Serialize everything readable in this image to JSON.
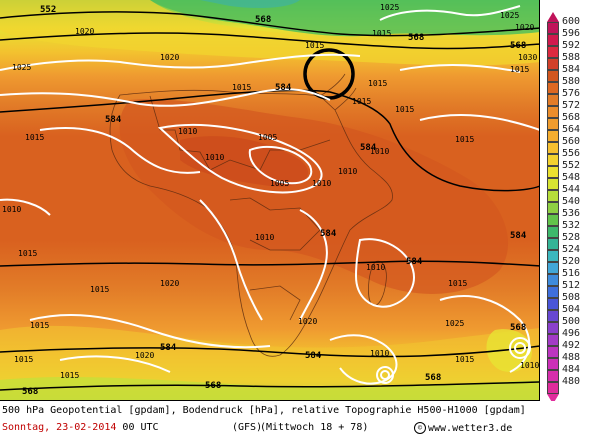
{
  "map": {
    "title": "500 hPa Geopotential [gpdam], Bodendruck [hPa], relative Topographie H500-H1000 [gpdam]",
    "date": "Sonntag, 23-02-2014",
    "run": "00 UTC",
    "model": "(GFS)",
    "valid": "(Mittwoch 18 + 78)",
    "site": "www.wetter3.de",
    "site_icon": "copyright-icon",
    "highlight_circle": "black ring over north-east Africa / Levant",
    "colors": {
      "deep_orange": "#d2561e",
      "orange": "#e07a2a",
      "light_orange": "#ef9a30",
      "yellow_orange": "#f6bd2e",
      "yellow": "#f3e22f",
      "lime": "#c5e03a",
      "green": "#7cca48",
      "teal": "#3fb89a",
      "pressure_isobar": "#ffffff",
      "geopotential_contour": "#000000"
    },
    "geopotential_labels": [
      {
        "text": "552"
      },
      {
        "text": "568"
      },
      {
        "text": "568"
      },
      {
        "text": "568"
      },
      {
        "text": "584"
      },
      {
        "text": "584"
      },
      {
        "text": "584"
      },
      {
        "text": "584"
      },
      {
        "text": "584"
      },
      {
        "text": "584"
      },
      {
        "text": "584"
      },
      {
        "text": "584"
      },
      {
        "text": "568"
      },
      {
        "text": "568"
      },
      {
        "text": "568"
      },
      {
        "text": "568"
      }
    ],
    "pressure_labels": [
      {
        "text": "1020"
      },
      {
        "text": "1025"
      },
      {
        "text": "1020"
      },
      {
        "text": "1015"
      },
      {
        "text": "1015"
      },
      {
        "text": "1015"
      },
      {
        "text": "1015"
      },
      {
        "text": "1015"
      },
      {
        "text": "1010"
      },
      {
        "text": "1010"
      },
      {
        "text": "1005"
      },
      {
        "text": "1005"
      },
      {
        "text": "1010"
      },
      {
        "text": "1010"
      },
      {
        "text": "1010"
      },
      {
        "text": "1010"
      },
      {
        "text": "1015"
      },
      {
        "text": "1015"
      },
      {
        "text": "1020"
      },
      {
        "text": "1020"
      },
      {
        "text": "1015"
      },
      {
        "text": "1015"
      },
      {
        "text": "1020"
      },
      {
        "text": "1015"
      },
      {
        "text": "1010"
      },
      {
        "text": "1010"
      },
      {
        "text": "1015"
      },
      {
        "text": "1010"
      },
      {
        "text": "1015"
      },
      {
        "text": "1025"
      },
      {
        "text": "1015"
      },
      {
        "text": "1015"
      },
      {
        "text": "1010"
      },
      {
        "text": "1015"
      },
      {
        "text": "1020"
      },
      {
        "text": "1025"
      },
      {
        "text": "1030"
      },
      {
        "text": "1015"
      },
      {
        "text": "1025"
      }
    ],
    "legend": {
      "levels": [
        {
          "label": "600",
          "color": "#c0145a"
        },
        {
          "label": "596",
          "color": "#d01a4e"
        },
        {
          "label": "592",
          "color": "#dc2a40"
        },
        {
          "label": "588",
          "color": "#d2402a"
        },
        {
          "label": "584",
          "color": "#d2561e"
        },
        {
          "label": "580",
          "color": "#dd6822"
        },
        {
          "label": "576",
          "color": "#e27c28"
        },
        {
          "label": "572",
          "color": "#eb8d2c"
        },
        {
          "label": "568",
          "color": "#f09c2e"
        },
        {
          "label": "564",
          "color": "#f5ad2f"
        },
        {
          "label": "560",
          "color": "#f7c030"
        },
        {
          "label": "556",
          "color": "#f4d22f"
        },
        {
          "label": "552",
          "color": "#ece12f"
        },
        {
          "label": "548",
          "color": "#d8e433"
        },
        {
          "label": "544",
          "color": "#b6dd3a"
        },
        {
          "label": "540",
          "color": "#8fd043"
        },
        {
          "label": "536",
          "color": "#62c44b"
        },
        {
          "label": "532",
          "color": "#3eb86c"
        },
        {
          "label": "528",
          "color": "#35b496"
        },
        {
          "label": "524",
          "color": "#3cb7be"
        },
        {
          "label": "520",
          "color": "#42a7d8"
        },
        {
          "label": "516",
          "color": "#3f8bdc"
        },
        {
          "label": "512",
          "color": "#3f6fdc"
        },
        {
          "label": "508",
          "color": "#4a55d8"
        },
        {
          "label": "504",
          "color": "#6748d2"
        },
        {
          "label": "500",
          "color": "#8a40cc"
        },
        {
          "label": "496",
          "color": "#a33bc6"
        },
        {
          "label": "492",
          "color": "#bc35c0"
        },
        {
          "label": "488",
          "color": "#cc30b8"
        },
        {
          "label": "484",
          "color": "#d62eac"
        },
        {
          "label": "480",
          "color": "#e02c9c"
        }
      ]
    }
  }
}
